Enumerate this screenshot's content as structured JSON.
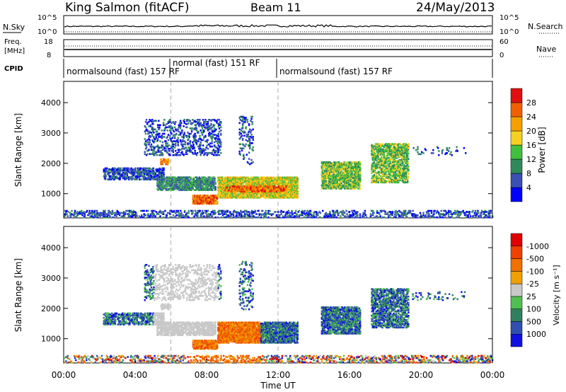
{
  "header": {
    "station": "King Salmon (fitACF)",
    "beam": "Beam 11",
    "date": "24/May/2013"
  },
  "panels": {
    "nsky": {
      "label": "N.Sky",
      "right_label": "N.Search",
      "left_ticks": [
        "10^5",
        "10^0"
      ],
      "right_ticks": [
        "10^5",
        "10^0"
      ]
    },
    "freq": {
      "label_line1": "Freq.",
      "label_line2": "[MHz]",
      "right_label": "Nave",
      "left_ticks": [
        "18",
        "8"
      ],
      "right_ticks": [
        "60",
        "0"
      ]
    },
    "cpid": {
      "label": "CPID",
      "segments": [
        {
          "label": "normalsound (fast) 157 RF",
          "start_hour": 0.0,
          "end_hour": 6.0
        },
        {
          "label": "normal (fast) 151 RF",
          "start_hour": 6.0,
          "end_hour": 12.0
        },
        {
          "label": "normalsound (fast) 157 RF",
          "start_hour": 12.0,
          "end_hour": 24.0
        }
      ]
    }
  },
  "chart_data": [
    {
      "type": "heatmap",
      "name": "power",
      "ylabel": "Slant Range [km]",
      "y_ticks": [
        "1000",
        "2000",
        "3000",
        "4000"
      ],
      "ylim": [
        200,
        4700
      ],
      "xlim": [
        0,
        24
      ],
      "colorbar_label": "Power [dB]",
      "colorbar_ticks": [
        "4",
        "8",
        "12",
        "16",
        "20",
        "24",
        "28"
      ],
      "colors": [
        "#0000ff",
        "#3a50b4",
        "#2f8a5a",
        "#3fc03f",
        "#f5d020",
        "#f5a000",
        "#f06000",
        "#e01010"
      ]
    },
    {
      "type": "heatmap",
      "name": "velocity",
      "ylabel": "Slant Range [km]",
      "y_ticks": [
        "1000",
        "2000",
        "3000",
        "4000"
      ],
      "ylim": [
        200,
        4700
      ],
      "xlim": [
        0,
        24
      ],
      "xlabel": "Time UT",
      "x_ticks": [
        "00:00",
        "04:00",
        "08:00",
        "12:00",
        "16:00",
        "20:00",
        "00:00"
      ],
      "colorbar_label": "Velocity [m s⁻¹]",
      "colorbar_ticks": [
        "1000",
        "500",
        "100",
        "25",
        "-25",
        "-100",
        "-500",
        "-1000"
      ],
      "colors": [
        "#1010e0",
        "#3050b0",
        "#308060",
        "#50c050",
        "#c8c8c8",
        "#f0a000",
        "#f07000",
        "#f04000",
        "#e00000"
      ]
    }
  ]
}
